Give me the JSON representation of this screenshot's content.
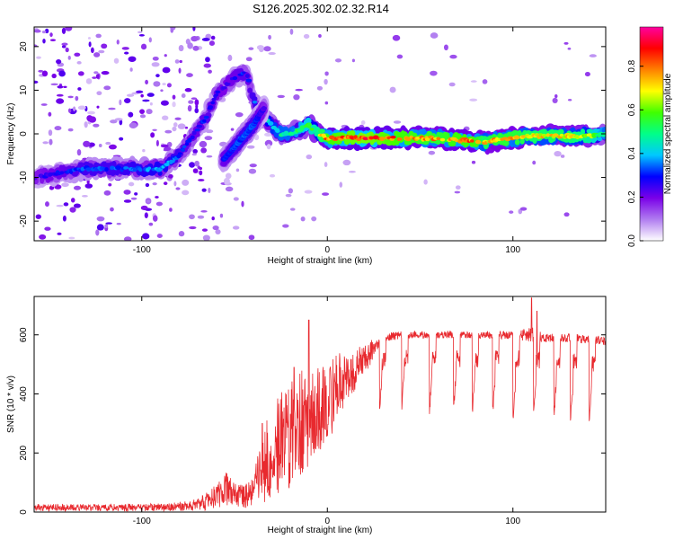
{
  "title": "S126.2025.302.02.32.R14",
  "chart_data": [
    {
      "type": "heatmap",
      "xlabel": "Height of straight line (km)",
      "ylabel": "Frequency (Hz)",
      "xlim": [
        -158,
        150
      ],
      "ylim": [
        -24.5,
        24.5
      ],
      "xticks": [
        -100,
        0,
        100
      ],
      "yticks": [
        20,
        10,
        0,
        -10,
        -20
      ],
      "colorbar": {
        "label": "Normalized spectral amplitude",
        "range": [
          0,
          0.98
        ],
        "ticks": [
          0.0,
          0.2,
          0.4,
          0.6,
          0.8
        ],
        "colors": [
          "#ffffff",
          "#b07cf0",
          "#7a00e8",
          "#0000ff",
          "#00c8ff",
          "#00ff88",
          "#40ff00",
          "#ffff00",
          "#ff8000",
          "#ff0000",
          "#ff00a0"
        ]
      },
      "ridge": {
        "x": [
          -158,
          -145,
          -130,
          -115,
          -100,
          -90,
          -80,
          -75,
          -70,
          -65,
          -62,
          -60,
          -55,
          -50,
          -45,
          -43,
          -40,
          -35,
          -30,
          -25,
          -20,
          -15,
          -10,
          -5,
          0,
          20,
          40,
          60,
          70,
          80,
          85,
          90,
          100,
          110,
          120,
          130,
          140,
          150
        ],
        "y": [
          -10,
          -9,
          -8,
          -8,
          -8,
          -8,
          -5,
          -2,
          1,
          4,
          7,
          9,
          11,
          13,
          14,
          13,
          8,
          4,
          2,
          0,
          0,
          1,
          2,
          0,
          -1,
          -1,
          -1,
          -1,
          -1.5,
          -1.5,
          -2,
          -1.5,
          -1,
          -0.5,
          -0.5,
          -0.5,
          -0.5,
          0
        ],
        "strength": [
          0.25,
          0.3,
          0.35,
          0.35,
          0.38,
          0.4,
          0.35,
          0.3,
          0.3,
          0.32,
          0.32,
          0.3,
          0.28,
          0.3,
          0.32,
          0.3,
          0.35,
          0.4,
          0.45,
          0.5,
          0.5,
          0.55,
          0.6,
          0.7,
          0.85,
          0.9,
          0.85,
          0.8,
          0.85,
          0.85,
          0.75,
          0.8,
          0.8,
          0.75,
          0.75,
          0.75,
          0.7,
          0.5
        ]
      },
      "branch": {
        "x": [
          -56,
          -52,
          -48,
          -44,
          -40,
          -37,
          -34
        ],
        "y": [
          -6,
          -4,
          -2,
          0,
          2,
          4,
          6
        ],
        "strength": [
          0.3,
          0.32,
          0.35,
          0.35,
          0.35,
          0.3,
          0.25
        ]
      }
    },
    {
      "type": "line",
      "xlabel": "Height of straight line (km)",
      "ylabel": "SNR (10 * v/v)",
      "xlim": [
        -158,
        150
      ],
      "ylim": [
        0,
        730
      ],
      "xticks": [
        -100,
        0,
        100
      ],
      "yticks": [
        0,
        200,
        400,
        600
      ],
      "color": "#e8292e",
      "envelope": {
        "x": [
          -158,
          -100,
          -80,
          -70,
          -60,
          -55,
          -50,
          -45,
          -40,
          -35,
          -30,
          -25,
          -20,
          -15,
          -10,
          -5,
          0,
          5,
          10,
          15,
          20,
          25,
          30,
          40,
          60,
          80,
          100,
          110,
          120,
          130,
          150
        ],
        "mean": [
          15,
          15,
          18,
          25,
          50,
          80,
          60,
          50,
          60,
          150,
          200,
          240,
          270,
          300,
          320,
          340,
          370,
          420,
          450,
          480,
          520,
          550,
          590,
          600,
          600,
          600,
          600,
          600,
          590,
          590,
          580
        ],
        "amp": [
          12,
          12,
          15,
          20,
          45,
          60,
          40,
          40,
          60,
          120,
          160,
          180,
          200,
          180,
          170,
          150,
          140,
          120,
          90,
          70,
          50,
          40,
          30,
          25,
          25,
          25,
          30,
          50,
          30,
          30,
          30
        ]
      },
      "dropouts": [
        {
          "x": 28,
          "y": 340
        },
        {
          "x": 40,
          "y": 350
        },
        {
          "x": 55,
          "y": 340
        },
        {
          "x": 68,
          "y": 350
        },
        {
          "x": 78,
          "y": 330
        },
        {
          "x": 89,
          "y": 330
        },
        {
          "x": 100,
          "y": 320
        },
        {
          "x": 111,
          "y": 320
        },
        {
          "x": 122,
          "y": 320
        },
        {
          "x": 131,
          "y": 310
        },
        {
          "x": 141,
          "y": 300
        }
      ],
      "peaks": [
        {
          "x": -10,
          "y": 650
        },
        {
          "x": -35,
          "y": 300
        },
        {
          "x": -18,
          "y": 490
        },
        {
          "x": 110,
          "y": 725
        },
        {
          "x": 113,
          "y": 680
        }
      ]
    }
  ]
}
